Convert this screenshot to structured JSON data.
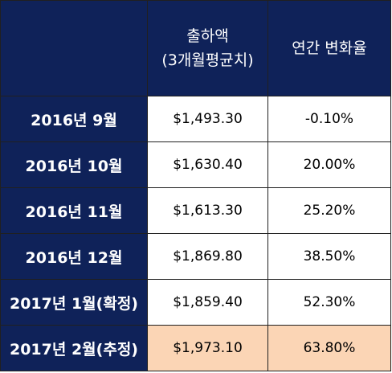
{
  "table": {
    "headers": {
      "empty": "",
      "shipment_line1": "출하액",
      "shipment_line2": "(3개월평균치)",
      "yoy_change": "연간 변화율"
    },
    "rows": [
      {
        "period": "2016년 9월",
        "value": "$1,493.30",
        "change": "-0.10%"
      },
      {
        "period": "2016년 10월",
        "value": "$1,630.40",
        "change": "20.00%"
      },
      {
        "period": "2016년 11월",
        "value": "$1,613.30",
        "change": "25.20%"
      },
      {
        "period": "2016년 12월",
        "value": "$1,869.80",
        "change": "38.50%"
      },
      {
        "period": "2017년 1월(확정)",
        "value": "$1,859.40",
        "change": "52.30%"
      },
      {
        "period": "2017년 2월(추정)",
        "value": "$1,973.10",
        "change": "63.80%"
      }
    ]
  },
  "colors": {
    "header_background": "#0f2259",
    "header_text": "#ffffff",
    "highlight_row": "#fbd5b5",
    "border": "#202020"
  }
}
